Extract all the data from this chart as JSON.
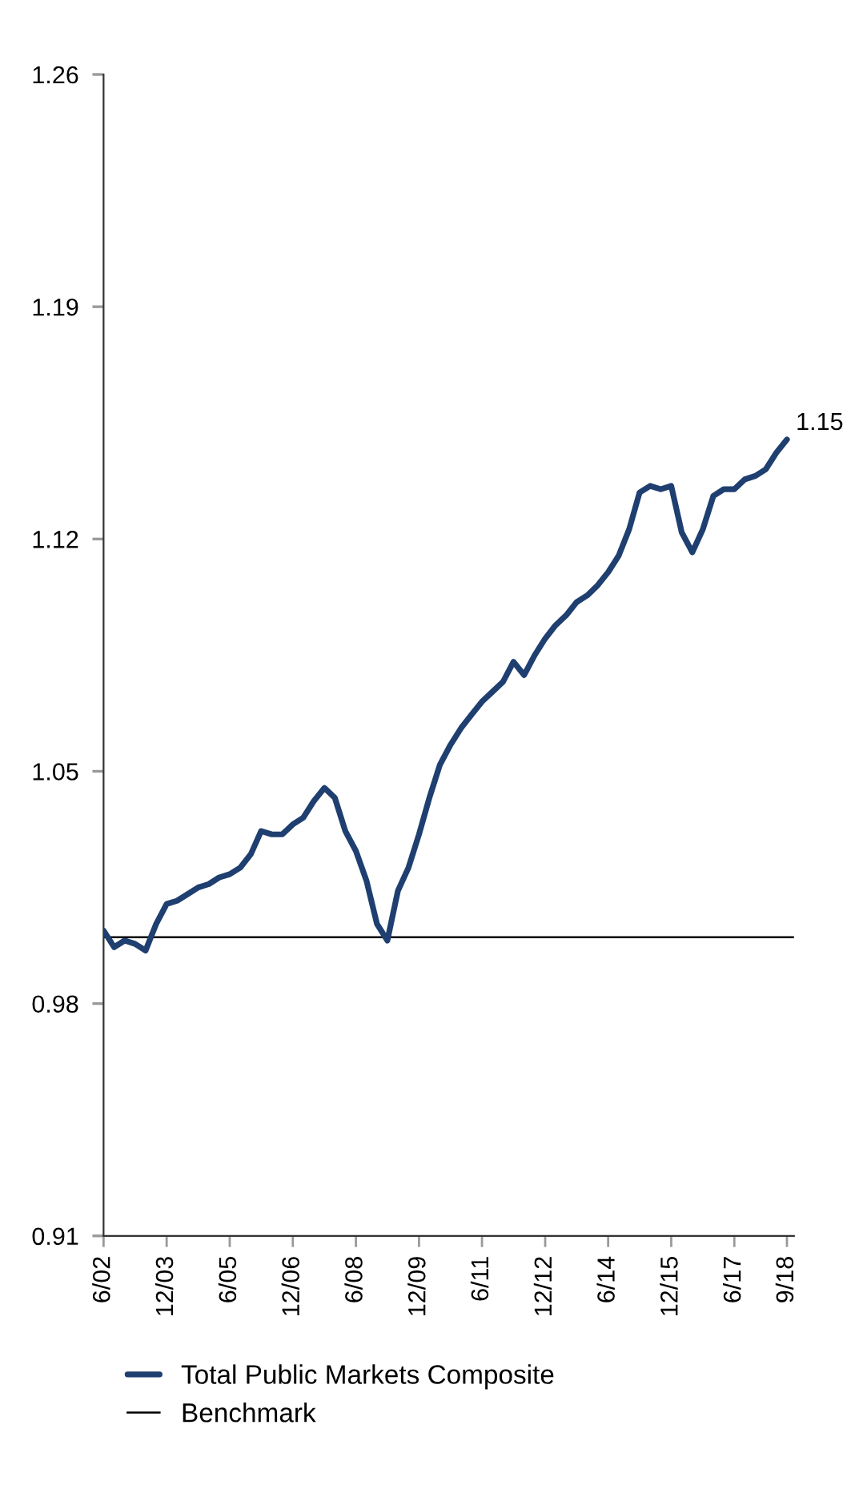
{
  "chart_data": {
    "type": "line",
    "x": [
      "2002-06",
      "2002-09",
      "2002-12",
      "2003-03",
      "2003-06",
      "2003-09",
      "2003-12",
      "2004-03",
      "2004-06",
      "2004-09",
      "2004-12",
      "2005-03",
      "2005-06",
      "2005-09",
      "2005-12",
      "2006-03",
      "2006-06",
      "2006-09",
      "2006-12",
      "2007-03",
      "2007-06",
      "2007-09",
      "2007-12",
      "2008-03",
      "2008-06",
      "2008-09",
      "2008-12",
      "2009-03",
      "2009-06",
      "2009-09",
      "2009-12",
      "2010-03",
      "2010-06",
      "2010-09",
      "2010-12",
      "2011-03",
      "2011-06",
      "2011-09",
      "2011-12",
      "2012-03",
      "2012-06",
      "2012-09",
      "2012-12",
      "2013-03",
      "2013-06",
      "2013-09",
      "2013-12",
      "2014-03",
      "2014-06",
      "2014-09",
      "2014-12",
      "2015-03",
      "2015-06",
      "2015-09",
      "2015-12",
      "2016-03",
      "2016-06",
      "2016-09",
      "2016-12",
      "2017-03",
      "2017-06",
      "2017-09",
      "2017-12",
      "2018-03",
      "2018-06",
      "2018-09"
    ],
    "series": [
      {
        "name": "Total Public Markets Composite",
        "color": "#1f3f70",
        "values": [
          1.002,
          0.997,
          0.999,
          0.998,
          0.996,
          1.004,
          1.01,
          1.011,
          1.013,
          1.015,
          1.016,
          1.018,
          1.019,
          1.021,
          1.025,
          1.032,
          1.031,
          1.031,
          1.034,
          1.036,
          1.041,
          1.045,
          1.042,
          1.032,
          1.026,
          1.017,
          1.004,
          0.999,
          1.014,
          1.021,
          1.031,
          1.042,
          1.052,
          1.058,
          1.063,
          1.067,
          1.071,
          1.074,
          1.077,
          1.083,
          1.079,
          1.085,
          1.09,
          1.094,
          1.097,
          1.101,
          1.103,
          1.106,
          1.11,
          1.115,
          1.123,
          1.134,
          1.136,
          1.135,
          1.136,
          1.122,
          1.116,
          1.123,
          1.133,
          1.135,
          1.135,
          1.138,
          1.139,
          1.141,
          1.146,
          1.15
        ]
      }
    ],
    "ref_lines": [
      {
        "axis": "y",
        "value": 1.0,
        "label": "Benchmark",
        "color": "#000000"
      }
    ],
    "annotations": [
      {
        "text": "1.15",
        "x": "2018-09",
        "y": 1.15
      }
    ],
    "xlim": [
      "2002-06",
      "2018-11"
    ],
    "xticks": [
      {
        "value": "2002-06",
        "label": "6/02"
      },
      {
        "value": "2003-12",
        "label": "12/03"
      },
      {
        "value": "2005-06",
        "label": "6/05"
      },
      {
        "value": "2006-12",
        "label": "12/06"
      },
      {
        "value": "2008-06",
        "label": "6/08"
      },
      {
        "value": "2009-12",
        "label": "12/09"
      },
      {
        "value": "2011-06",
        "label": "6/11"
      },
      {
        "value": "2012-12",
        "label": "12/12"
      },
      {
        "value": "2014-06",
        "label": "6/14"
      },
      {
        "value": "2015-12",
        "label": "12/15"
      },
      {
        "value": "2017-06",
        "label": "6/17"
      },
      {
        "value": "2018-09",
        "label": "9/18"
      }
    ],
    "ylim": [
      0.91,
      1.26
    ],
    "yticks": [
      0.91,
      0.98,
      1.05,
      1.12,
      1.19,
      1.26
    ],
    "grid": false,
    "legend": "bottom",
    "marker": "none",
    "line_style": "solid"
  }
}
